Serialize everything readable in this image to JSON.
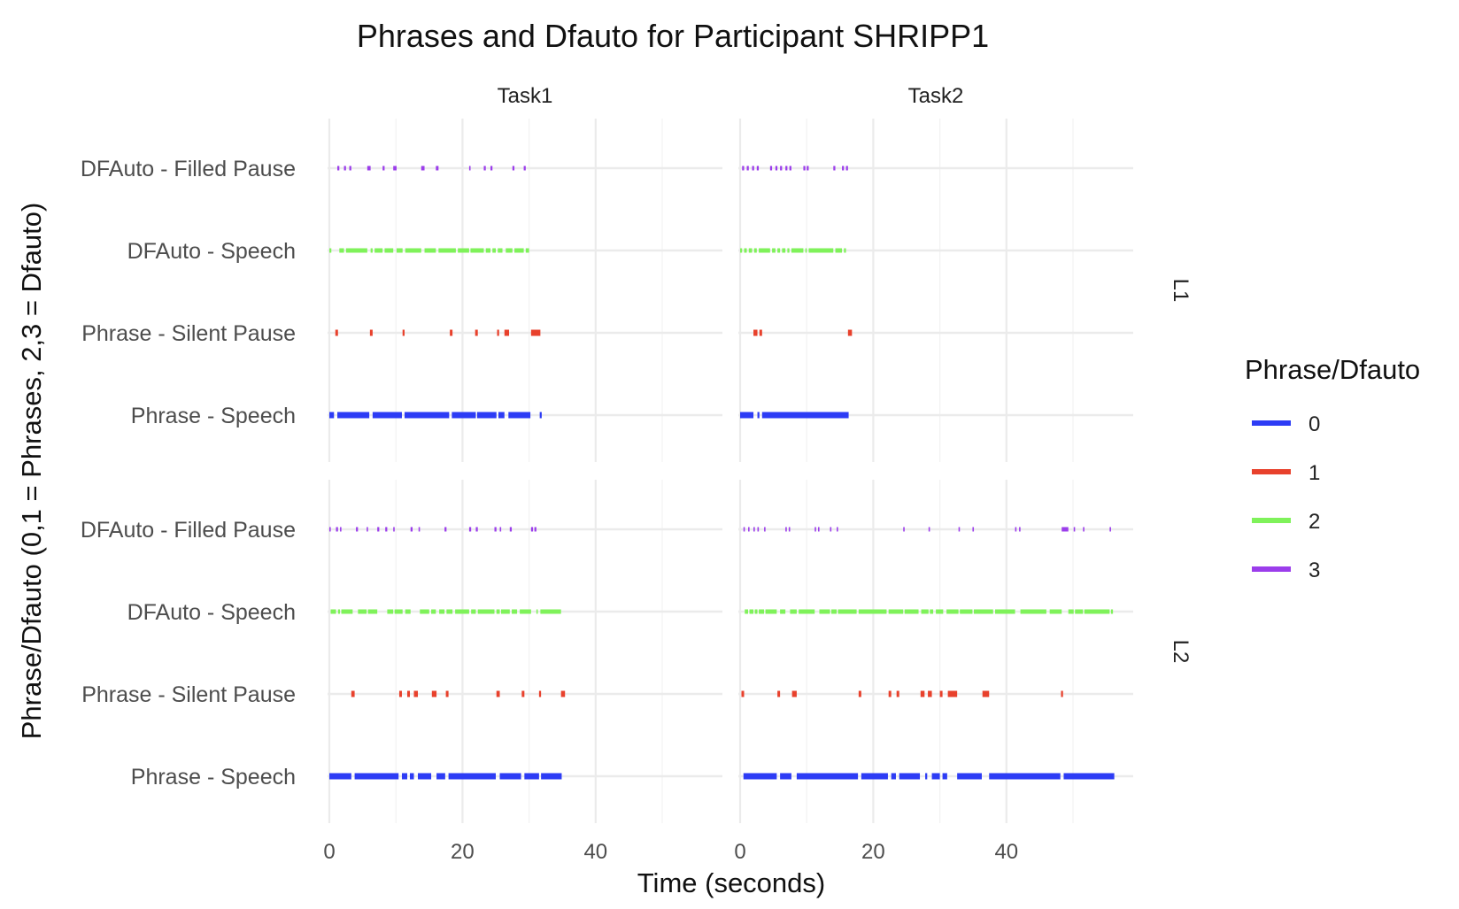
{
  "chart_data": {
    "type": "timeline",
    "title": "Phrases and Dfauto for Participant SHRIPP1",
    "xlabel": "Time (seconds)",
    "ylabel": "Phrase/Dfauto (0,1 = Phrases, 2,3 = Dfauto)",
    "columns": [
      "Task1",
      "Task2"
    ],
    "rows": [
      "L1",
      "L2"
    ],
    "categories": [
      "DFAuto - Filled Pause",
      "DFAuto - Speech",
      "Phrase - Silent Pause",
      "Phrase - Speech"
    ],
    "x_ticks": [
      0,
      20,
      40
    ],
    "x_range": [
      -2,
      57
    ],
    "grid": true,
    "legend": {
      "title": "Phrase/Dfauto",
      "position": "right",
      "entries": [
        {
          "label": "0",
          "color": "#2D3CF5"
        },
        {
          "label": "1",
          "color": "#E8412C"
        },
        {
          "label": "2",
          "color": "#7FF25A"
        },
        {
          "label": "3",
          "color": "#9B3DEB"
        }
      ]
    },
    "panels": [
      {
        "column": "Task1",
        "row": "L1",
        "series": {
          "DFAuto - Filled Pause": {
            "code": "3",
            "intervals": [
              [
                1.2,
                1.5
              ],
              [
                2.2,
                2.5
              ],
              [
                3,
                3.3
              ],
              [
                5.7,
                6.2
              ],
              [
                8,
                8.3
              ],
              [
                9.6,
                10.1
              ],
              [
                13.8,
                14.3
              ],
              [
                16,
                16.4
              ],
              [
                21,
                21.2
              ],
              [
                23.2,
                23.5
              ],
              [
                24.2,
                24.5
              ],
              [
                27.5,
                27.8
              ],
              [
                29.2,
                29.5
              ]
            ]
          },
          "DFAuto - Speech": {
            "code": "2",
            "intervals": [
              [
                0,
                0.3
              ],
              [
                1.5,
                2.2
              ],
              [
                2.5,
                5.7
              ],
              [
                6.2,
                6.5
              ],
              [
                6.8,
                8
              ],
              [
                8.3,
                9.6
              ],
              [
                10.1,
                11
              ],
              [
                11.4,
                13.8
              ],
              [
                14.3,
                16
              ],
              [
                16.4,
                19
              ],
              [
                19.3,
                21
              ],
              [
                21.2,
                23.2
              ],
              [
                23.5,
                24.2
              ],
              [
                24.5,
                25
              ],
              [
                25.3,
                26
              ],
              [
                26.5,
                27.5
              ],
              [
                27.8,
                29.2
              ],
              [
                29.5,
                30
              ]
            ]
          },
          "Phrase - Silent Pause": {
            "code": "1",
            "intervals": [
              [
                0.9,
                1.3
              ],
              [
                6.1,
                6.5
              ],
              [
                11,
                11.3
              ],
              [
                18.1,
                18.5
              ],
              [
                21.9,
                22.3
              ],
              [
                25.2,
                25.5
              ],
              [
                26.3,
                27
              ],
              [
                30.3,
                31.7
              ]
            ]
          },
          "Phrase - Speech": {
            "code": "0",
            "intervals": [
              [
                0,
                0.7
              ],
              [
                1.2,
                6
              ],
              [
                6.5,
                10.9
              ],
              [
                11.3,
                18
              ],
              [
                18.4,
                22
              ],
              [
                22.2,
                25.1
              ],
              [
                25.4,
                26.3
              ],
              [
                26.9,
                30.2
              ],
              [
                31.6,
                31.9
              ]
            ]
          }
        }
      },
      {
        "column": "Task2",
        "row": "L1",
        "series": {
          "DFAuto - Filled Pause": {
            "code": "3",
            "intervals": [
              [
                0.3,
                0.6
              ],
              [
                1,
                1.3
              ],
              [
                1.8,
                2.1
              ],
              [
                2.5,
                2.8
              ],
              [
                4.5,
                4.8
              ],
              [
                5.3,
                5.6
              ],
              [
                6,
                6.3
              ],
              [
                6.8,
                7.1
              ],
              [
                7.4,
                7.7
              ],
              [
                9.5,
                9.8
              ],
              [
                10,
                10.3
              ],
              [
                14,
                14.3
              ],
              [
                15.3,
                15.6
              ],
              [
                15.9,
                16.2
              ]
            ]
          },
          "DFAuto - Speech": {
            "code": "2",
            "intervals": [
              [
                0,
                0.3
              ],
              [
                0.6,
                1
              ],
              [
                1.3,
                1.8
              ],
              [
                2.1,
                2.5
              ],
              [
                2.8,
                4.5
              ],
              [
                4.8,
                5.3
              ],
              [
                5.6,
                6
              ],
              [
                6.3,
                6.8
              ],
              [
                7.1,
                7.4
              ],
              [
                7.7,
                9.5
              ],
              [
                9.8,
                10
              ],
              [
                10.3,
                14
              ],
              [
                14.3,
                15.3
              ],
              [
                15.6,
                15.9
              ]
            ]
          },
          "Phrase - Silent Pause": {
            "code": "1",
            "intervals": [
              [
                2,
                2.6
              ],
              [
                2.9,
                3.3
              ],
              [
                16.2,
                16.8
              ]
            ]
          },
          "Phrase - Speech": {
            "code": "0",
            "intervals": [
              [
                0,
                2
              ],
              [
                2.6,
                2.9
              ],
              [
                3.3,
                16.3
              ]
            ]
          }
        }
      },
      {
        "column": "Task1",
        "row": "L2",
        "series": {
          "DFAuto - Filled Pause": {
            "code": "3",
            "intervals": [
              [
                0,
                0.2
              ],
              [
                1,
                1.3
              ],
              [
                1.6,
                1.8
              ],
              [
                4,
                4.3
              ],
              [
                5.6,
                5.8
              ],
              [
                7.2,
                7.5
              ],
              [
                8.4,
                8.7
              ],
              [
                9.6,
                9.8
              ],
              [
                12.2,
                12.5
              ],
              [
                13.4,
                13.6
              ],
              [
                17.3,
                17.6
              ],
              [
                21,
                21.3
              ],
              [
                22,
                22.3
              ],
              [
                24.8,
                25.1
              ],
              [
                25.6,
                25.8
              ],
              [
                27.1,
                27.4
              ],
              [
                30.3,
                30.6
              ],
              [
                30.8,
                31.1
              ]
            ]
          },
          "DFAuto - Speech": {
            "code": "2",
            "intervals": [
              [
                0.2,
                1
              ],
              [
                1.3,
                1.6
              ],
              [
                1.8,
                3.5
              ],
              [
                4.3,
                5.6
              ],
              [
                5.8,
                7.2
              ],
              [
                8.7,
                9.6
              ],
              [
                9.8,
                11
              ],
              [
                11.4,
                12.2
              ],
              [
                13.6,
                15
              ],
              [
                15.3,
                16
              ],
              [
                16.5,
                17.3
              ],
              [
                17.6,
                18.5
              ],
              [
                18.9,
                21
              ],
              [
                21.3,
                22
              ],
              [
                22.3,
                24.8
              ],
              [
                25.1,
                25.6
              ],
              [
                25.8,
                27.1
              ],
              [
                27.4,
                28.2
              ],
              [
                28.6,
                30.3
              ],
              [
                31.1,
                31.3
              ],
              [
                31.7,
                34.8
              ]
            ]
          },
          "Phrase - Silent Pause": {
            "code": "1",
            "intervals": [
              [
                3.3,
                3.8
              ],
              [
                10.5,
                10.9
              ],
              [
                11.7,
                12.1
              ],
              [
                12.7,
                13.3
              ],
              [
                15.4,
                16.1
              ],
              [
                17.5,
                17.9
              ],
              [
                25.1,
                25.6
              ],
              [
                28.9,
                29.3
              ],
              [
                31.5,
                31.8
              ],
              [
                34.8,
                35.4
              ]
            ]
          },
          "Phrase - Speech": {
            "code": "0",
            "intervals": [
              [
                0,
                3.3
              ],
              [
                3.8,
                10.4
              ],
              [
                10.9,
                11.7
              ],
              [
                12.1,
                12.7
              ],
              [
                13.3,
                15.3
              ],
              [
                16.1,
                17.4
              ],
              [
                17.9,
                25
              ],
              [
                25.6,
                28.8
              ],
              [
                29.3,
                31.5
              ],
              [
                31.8,
                34.9
              ]
            ]
          }
        }
      },
      {
        "column": "Task2",
        "row": "L2",
        "series": {
          "DFAuto - Filled Pause": {
            "code": "3",
            "intervals": [
              [
                0.5,
                0.7
              ],
              [
                1.2,
                1.4
              ],
              [
                2,
                2.2
              ],
              [
                2.6,
                2.8
              ],
              [
                3.6,
                3.8
              ],
              [
                6.8,
                7
              ],
              [
                7.3,
                7.5
              ],
              [
                11.2,
                11.4
              ],
              [
                11.7,
                11.9
              ],
              [
                13.5,
                13.7
              ],
              [
                14.5,
                14.7
              ],
              [
                24.5,
                24.7
              ],
              [
                28.3,
                28.5
              ],
              [
                32.8,
                33
              ],
              [
                34.9,
                35.1
              ],
              [
                41.3,
                41.5
              ],
              [
                41.9,
                42.1
              ],
              [
                48.3,
                49.3
              ],
              [
                50.1,
                50.3
              ],
              [
                51.5,
                51.7
              ],
              [
                55.5,
                55.7
              ]
            ]
          },
          "DFAuto - Speech": {
            "code": "2",
            "intervals": [
              [
                0.7,
                1.2
              ],
              [
                1.4,
                2
              ],
              [
                2.2,
                2.6
              ],
              [
                2.8,
                3.6
              ],
              [
                3.8,
                5.5
              ],
              [
                6,
                6.8
              ],
              [
                7.5,
                8.5
              ],
              [
                8.8,
                11.2
              ],
              [
                11.9,
                13.5
              ],
              [
                13.7,
                14.5
              ],
              [
                14.7,
                17.5
              ],
              [
                17.8,
                22
              ],
              [
                22.3,
                24.5
              ],
              [
                24.7,
                26.8
              ],
              [
                27.2,
                28.3
              ],
              [
                28.5,
                29
              ],
              [
                29.4,
                30.5
              ],
              [
                31,
                32.8
              ],
              [
                33,
                34.9
              ],
              [
                35.1,
                38
              ],
              [
                38.3,
                41.3
              ],
              [
                42.1,
                46
              ],
              [
                46.5,
                48.3
              ],
              [
                49.3,
                50.1
              ],
              [
                50.3,
                51.5
              ],
              [
                51.7,
                55.5
              ],
              [
                55.7,
                56
              ]
            ]
          },
          "Phrase - Silent Pause": {
            "code": "1",
            "intervals": [
              [
                0.2,
                0.6
              ],
              [
                5.6,
                6
              ],
              [
                7.8,
                8.5
              ],
              [
                17.8,
                18.2
              ],
              [
                22.3,
                22.7
              ],
              [
                23.5,
                23.9
              ],
              [
                27.1,
                27.7
              ],
              [
                28.2,
                28.8
              ],
              [
                30,
                30.4
              ],
              [
                31.2,
                32.6
              ],
              [
                36.4,
                37.4
              ],
              [
                48.2,
                48.5
              ]
            ]
          },
          "Phrase - Speech": {
            "code": "0",
            "intervals": [
              [
                0.5,
                5.5
              ],
              [
                6,
                7.7
              ],
              [
                8.5,
                17.7
              ],
              [
                18.2,
                22.2
              ],
              [
                22.7,
                23.4
              ],
              [
                23.9,
                27
              ],
              [
                27.8,
                28.1
              ],
              [
                28.8,
                30
              ],
              [
                30.4,
                31.1
              ],
              [
                32.6,
                36.3
              ],
              [
                37.4,
                48.1
              ],
              [
                48.6,
                56.2
              ]
            ]
          }
        }
      }
    ]
  }
}
